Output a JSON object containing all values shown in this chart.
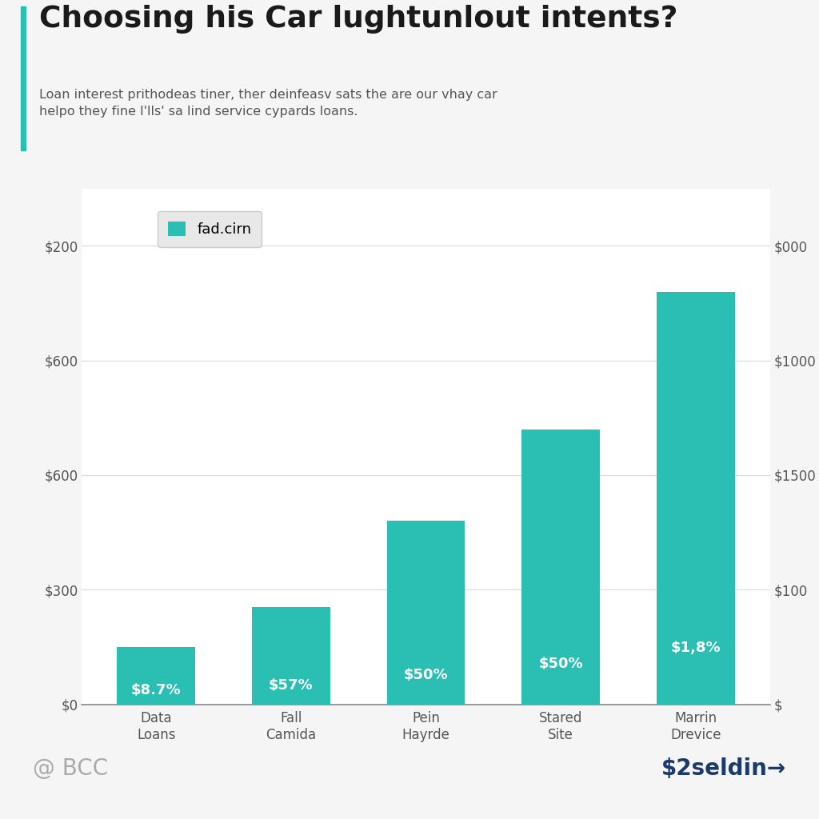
{
  "title": "Choosing his Car lughtunlout intents?",
  "subtitle": "Loan interest prithodeas tiner, ther deinfeasv sats the are our vhay car\nhelpo they fine l'lls' sa lind service cypards loans.",
  "categories": [
    "Data\nLoans",
    "Fall\nCamida",
    "Pein\nHayrde",
    "Stared\nSite",
    "Marrin\nDrevice"
  ],
  "values": [
    1.0,
    1.7,
    3.2,
    4.8,
    7.2
  ],
  "bar_labels": [
    "$8.7%",
    "$57%",
    "$50%",
    "$50%",
    "$1,8%"
  ],
  "bar_color": "#2BBFB3",
  "legend_label": "fad.cirn",
  "legend_color": "#2BBFB3",
  "left_ytick_positions": [
    0,
    2.0,
    4.0,
    6.0,
    8.0
  ],
  "left_ytick_labels": [
    "$0",
    "$300",
    "$600",
    "$600",
    "$200"
  ],
  "right_ytick_positions": [
    0,
    2.0,
    4.0,
    6.0,
    8.0
  ],
  "right_ytick_labels": [
    "$",
    "$100",
    "$1500",
    "$1000",
    "$000"
  ],
  "ymax": 9.0,
  "background_color": "#f5f5f5",
  "chart_bg_color": "#ffffff",
  "title_bar_color": "#2BBFB3",
  "footer_left": "@ BCC",
  "footer_right": "$2seldin→",
  "grid_color": "#dddddd",
  "tick_label_color": "#555555",
  "bar_label_fontsize": 13,
  "bar_width": 0.58
}
